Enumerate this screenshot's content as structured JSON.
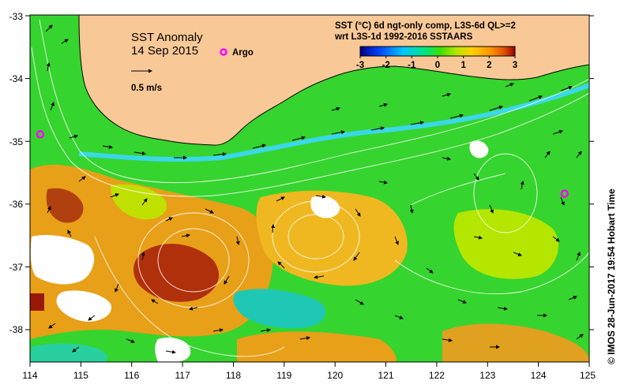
{
  "map": {
    "title": "SST Anomaly",
    "date": "14 Sep 2015",
    "scale_label": "0.5 m/s",
    "argo_label": "Argo",
    "argo_color": "#ff00ff",
    "info_line1": "SST (°C) 6d ngt-only comp, L3S-6d QL>=2",
    "info_line2": "wrt L3S-1d 1992-2016 SSTAARS",
    "colorbar": {
      "min": -3,
      "max": 3,
      "ticks": [
        "-3",
        "-2",
        "-1",
        "0",
        "1",
        "2",
        "3"
      ],
      "colors": [
        "#00007f",
        "#0040ff",
        "#00c8ff",
        "#00e680",
        "#40e000",
        "#b4e600",
        "#ffd200",
        "#ff9600",
        "#e05000",
        "#9a0000"
      ]
    },
    "credit": "© IMOS 28-Jun-2017 19:54 Hobart Time",
    "x_ticks": [
      "114",
      "115",
      "116",
      "117",
      "118",
      "119",
      "120",
      "121",
      "122",
      "123",
      "124",
      "125"
    ],
    "y_ticks": [
      "-33",
      "-34",
      "-35",
      "-36",
      "-37",
      "-38"
    ],
    "argo_floats": [
      {
        "lon": 114.2,
        "lat": -34.9
      },
      {
        "lon": 124.5,
        "lat": -35.8
      }
    ],
    "colors": {
      "land": "#f9c897",
      "ocean_base": "#36d42e",
      "warm": "#e8a018",
      "hot": "#b0300c",
      "cool": "#1ec8b4",
      "shelf_cold": "#3ad8e8",
      "missing": "#ffffff"
    }
  }
}
